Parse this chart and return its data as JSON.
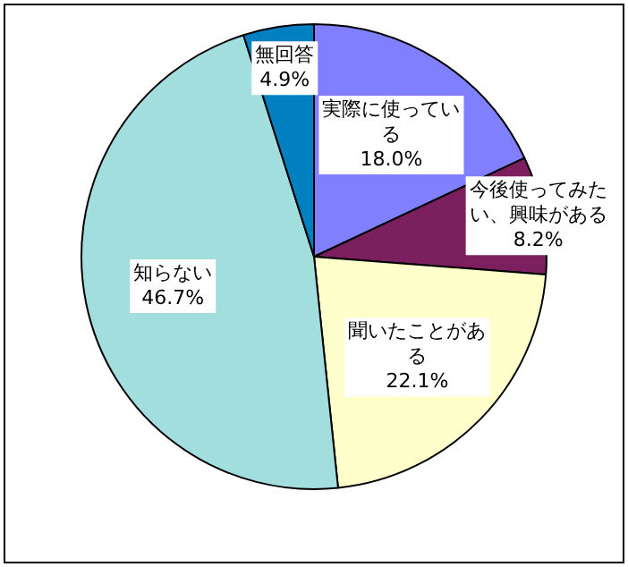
{
  "chart_data": {
    "type": "pie",
    "categories": [
      "実際に使っている",
      "今後使ってみたい、興味がある",
      "聞いたことがある",
      "知らない",
      "無回答"
    ],
    "values": [
      18.0,
      8.2,
      22.1,
      46.7,
      4.9
    ],
    "value_labels": [
      "18.0%",
      "8.2%",
      "22.1%",
      "46.7%",
      "4.9%"
    ],
    "colors": [
      "#8080ff",
      "#7b1f5f",
      "#ffffcc",
      "#a2dede",
      "#0080c0"
    ],
    "legend": false
  }
}
